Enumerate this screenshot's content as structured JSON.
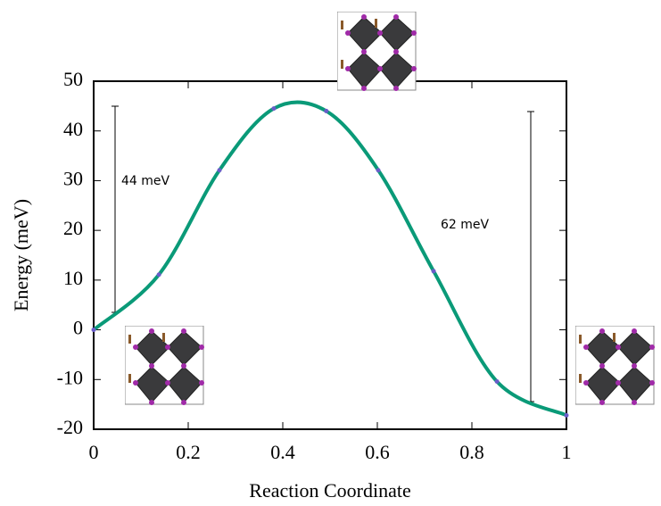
{
  "chart_data": {
    "type": "line",
    "x_label": "Reaction Coordinate",
    "y_label": "Energy (meV)",
    "x": [
      0,
      0.138,
      0.266,
      0.381,
      0.492,
      0.602,
      0.719,
      0.853,
      1
    ],
    "series": [
      {
        "color": "#0a9a78",
        "marker_color": "#6a5cc8",
        "values": [
          0,
          11.1,
          32.1,
          44.5,
          44.0,
          32.1,
          11.8,
          -10.4,
          -17.2
        ]
      }
    ],
    "xlim": [
      0,
      1
    ],
    "xticks": [
      0,
      0.2,
      0.4,
      0.6,
      0.8,
      1
    ],
    "ylim": [
      -20,
      50
    ],
    "yticks": [
      -20,
      -10,
      0,
      10,
      20,
      30,
      40,
      50
    ],
    "annotations": [
      "44 meV",
      "62 meV"
    ]
  }
}
